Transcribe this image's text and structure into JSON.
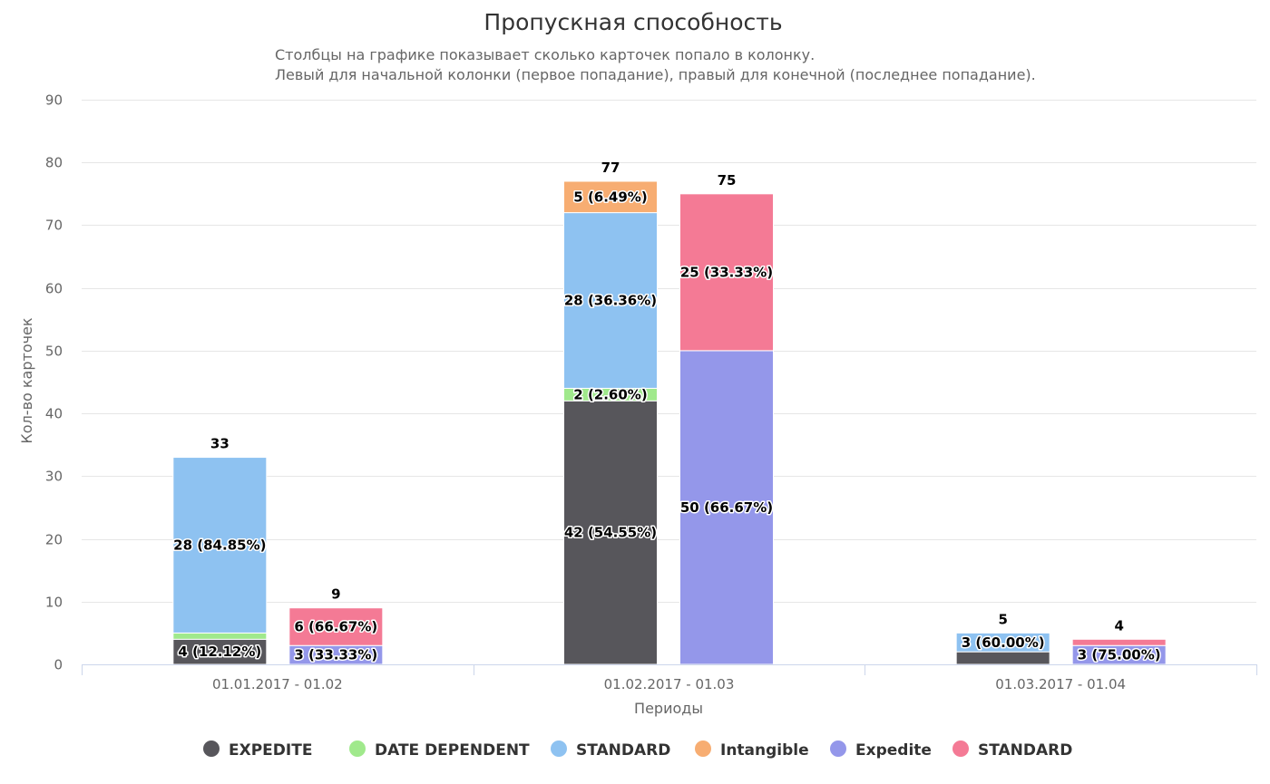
{
  "chart_data": {
    "type": "bar",
    "stacked": true,
    "title": "Пропускная способность",
    "subtitle": [
      "Столбцы на графике показывает сколько карточек попало в колонку.",
      "Левый для начальной колонки (первое попадание), правый для конечной (последнее попадание)."
    ],
    "xlabel": "Периоды",
    "ylabel": "Кол-во карточек",
    "ylim": [
      0,
      90
    ],
    "yticks": [
      0,
      10,
      20,
      30,
      40,
      50,
      60,
      70,
      80,
      90
    ],
    "grid": true,
    "legend_position": "bottom-center",
    "categories": [
      "01.01.2017 - 01.02",
      "01.02.2017 - 01.03",
      "01.03.2017 - 01.04"
    ],
    "stacks": [
      "start",
      "end"
    ],
    "series": [
      {
        "name": "EXPEDITE",
        "stack": "start",
        "color": "#57565b",
        "values": [
          4,
          42,
          2
        ],
        "labels": [
          "4 (12.12%)",
          "42 (54.55%)",
          ""
        ]
      },
      {
        "name": "DATE DEPENDENT",
        "stack": "start",
        "color": "#a0e98c",
        "values": [
          1,
          2,
          0
        ],
        "labels": [
          "",
          "2 (2.60%)",
          ""
        ]
      },
      {
        "name": "STANDARD",
        "stack": "start",
        "color": "#8ec2f1",
        "values": [
          28,
          28,
          3
        ],
        "labels": [
          "28 (84.85%)",
          "28 (36.36%)",
          "3 (60.00%)"
        ]
      },
      {
        "name": "Intangible",
        "stack": "start",
        "color": "#f7ad72",
        "values": [
          0,
          5,
          0
        ],
        "labels": [
          "",
          "5 (6.49%)",
          ""
        ]
      },
      {
        "name": "Expedite",
        "stack": "end",
        "color": "#9497ea",
        "values": [
          3,
          50,
          3
        ],
        "labels": [
          "3 (33.33%)",
          "50 (66.67%)",
          "3 (75.00%)"
        ]
      },
      {
        "name": "STANDARD",
        "stack": "end",
        "color": "#f47a95",
        "values": [
          6,
          25,
          1
        ],
        "labels": [
          "6 (66.67%)",
          "25 (33.33%)",
          ""
        ]
      }
    ],
    "totals": {
      "start": [
        "33",
        "77",
        "5"
      ],
      "end": [
        "9",
        "75",
        "4"
      ]
    }
  }
}
